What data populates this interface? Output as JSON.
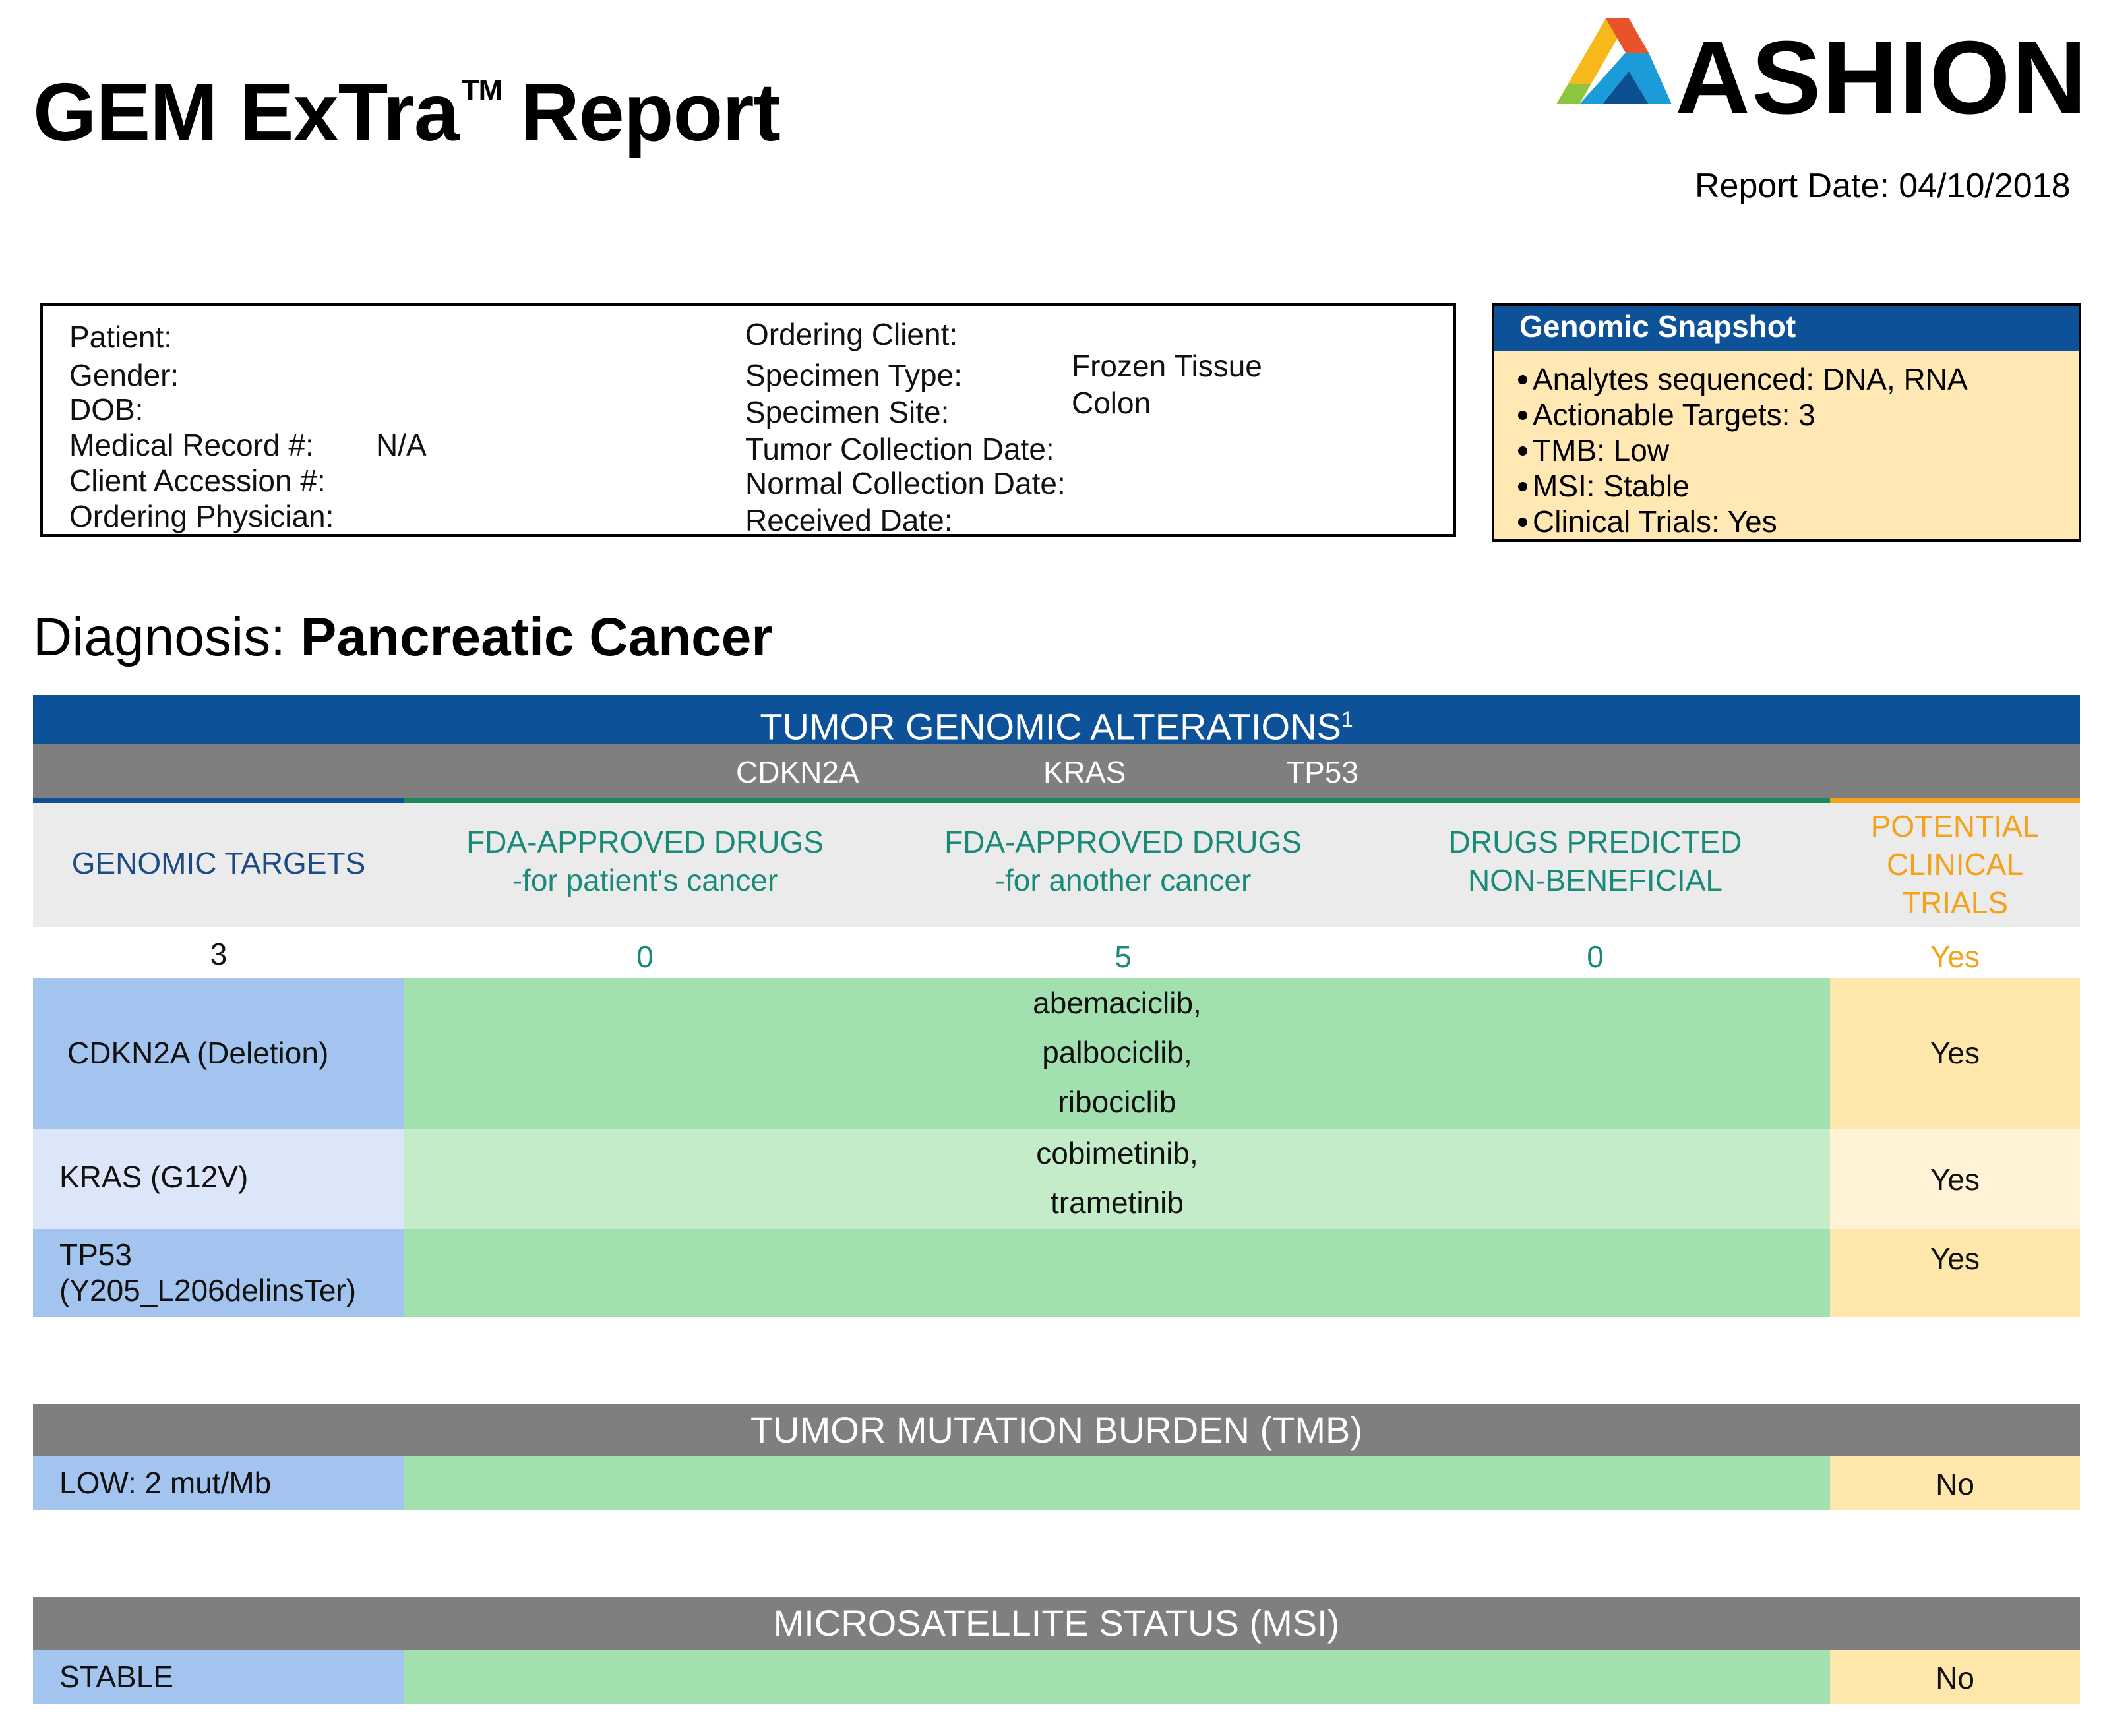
{
  "header": {
    "title_main": "GEM ExTra",
    "title_tm": "TM",
    "title_suffix": "Report",
    "logo_text": "ASHION",
    "logo_reg": "®",
    "report_date_label": "Report Date:",
    "report_date": "04/10/2018"
  },
  "patient_info": {
    "patient_label": "Patient:",
    "gender_label": "Gender:",
    "dob_label": "DOB:",
    "mrn_label": "Medical Record #:",
    "mrn_value": "N/A",
    "accession_label": "Client Accession #:",
    "physician_label": "Ordering Physician:",
    "client_label": "Ordering Client:",
    "specimen_type_label": "Specimen Type:",
    "specimen_type_value": "Frozen Tissue",
    "specimen_site_label": "Specimen Site:",
    "specimen_site_value": "Colon",
    "tumor_date_label": "Tumor Collection Date:",
    "normal_date_label": "Normal Collection Date:",
    "received_label": "Received Date:"
  },
  "snapshot": {
    "title": "Genomic Snapshot",
    "items": [
      "Analytes sequenced: DNA, RNA",
      "Actionable Targets: 3",
      "TMB: Low",
      "MSI: Stable",
      "Clinical Trials: Yes"
    ]
  },
  "diagnosis": {
    "label": "Diagnosis:",
    "value": "Pancreatic Cancer"
  },
  "alterations": {
    "title": "TUMOR GENOMIC ALTERATIONS",
    "title_sup": "1",
    "genes": [
      "CDKN2A",
      "KRAS",
      "TP53"
    ],
    "columns": {
      "targets": "GENOMIC TARGETS",
      "fda_patient_1": "FDA-APPROVED DRUGS",
      "fda_patient_2": "-for patient's cancer",
      "fda_other_1": "FDA-APPROVED DRUGS",
      "fda_other_2": "-for another cancer",
      "nonbeneficial_1": "DRUGS PREDICTED",
      "nonbeneficial_2": "NON-BENEFICIAL",
      "trials_1": "POTENTIAL",
      "trials_2": "CLINICAL",
      "trials_3": "TRIALS"
    },
    "counts": {
      "targets": "3",
      "fda_patient": "0",
      "fda_other": "5",
      "nonbeneficial": "0",
      "trials": "Yes"
    },
    "rows": [
      {
        "target": "CDKN2A (Deletion)",
        "drugs": [
          "abemaciclib,",
          "palbociclib,",
          "ribociclib"
        ],
        "trials": "Yes"
      },
      {
        "target": "KRAS (G12V)",
        "drugs": [
          "cobimetinib,",
          "trametinib"
        ],
        "trials": "Yes"
      },
      {
        "target_1": "TP53",
        "target_2": "(Y205_L206delinsTer)",
        "trials": "Yes"
      }
    ]
  },
  "tmb": {
    "title": "TUMOR MUTATION BURDEN (TMB)",
    "value": "LOW: 2 mut/Mb",
    "trials": "No"
  },
  "msi": {
    "title": "MICROSATELLITE STATUS (MSI)",
    "value": "STABLE",
    "trials": "No"
  },
  "colors": {
    "brand_blue": "#0d5199",
    "header_gray": "#7f7f7f",
    "target_blue": "#a3c4ee",
    "drug_green": "#a2e0b0",
    "trial_yellow": "#ffe6aa",
    "teal_text": "#1a8a78",
    "orange_text": "#f4a21a"
  }
}
